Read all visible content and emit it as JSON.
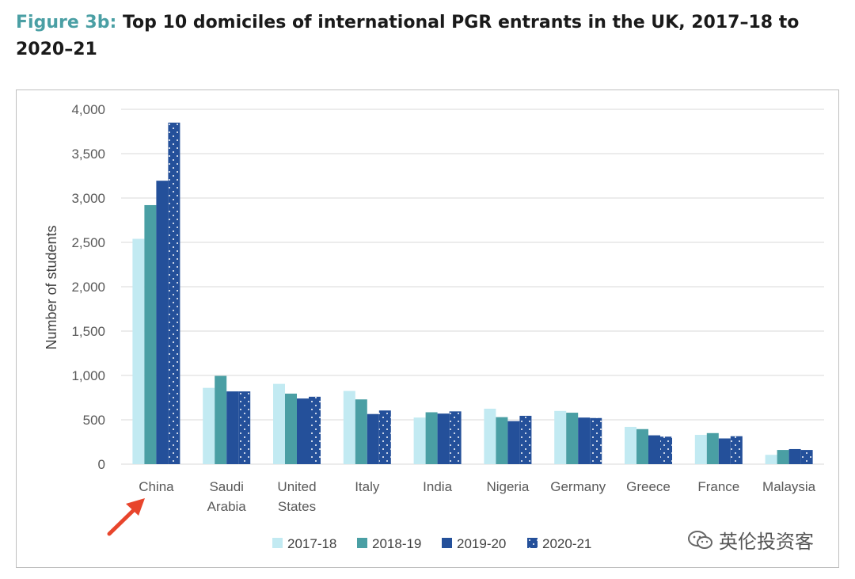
{
  "title": {
    "label": "Figure 3b:",
    "text": "Top 10 domiciles of international PGR entrants in the UK, 2017–18 to 2020–21"
  },
  "watermark": "英伦投资客",
  "colors": {
    "2017-18": "#c2eaf2",
    "2018-19": "#4a9fa4",
    "2019-20": "#24509a",
    "2020-21": "#24509a",
    "arrow": "#e8452c",
    "grid": "#d9d9d9"
  },
  "chart_data": {
    "type": "bar",
    "ylabel": "Number of students",
    "ylim": [
      0,
      4000
    ],
    "yticks": [
      0,
      500,
      1000,
      1500,
      2000,
      2500,
      3000,
      3500,
      4000
    ],
    "ytick_labels": [
      "0",
      "500",
      "1,000",
      "1,500",
      "2,000",
      "2,500",
      "3,000",
      "3,500",
      "4,000"
    ],
    "categories": [
      [
        "China"
      ],
      [
        "Saudi",
        "Arabia"
      ],
      [
        "United",
        "States"
      ],
      [
        "Italy"
      ],
      [
        "India"
      ],
      [
        "Nigeria"
      ],
      [
        "Germany"
      ],
      [
        "Greece"
      ],
      [
        "France"
      ],
      [
        "Malaysia"
      ]
    ],
    "series": [
      {
        "name": "2017-18",
        "values": [
          2540,
          860,
          905,
          825,
          525,
          625,
          600,
          420,
          330,
          105
        ]
      },
      {
        "name": "2018-19",
        "values": [
          2920,
          995,
          795,
          730,
          585,
          530,
          580,
          395,
          350,
          160
        ]
      },
      {
        "name": "2019-20",
        "values": [
          3195,
          820,
          740,
          565,
          570,
          485,
          525,
          325,
          290,
          170
        ]
      },
      {
        "name": "2020-21",
        "values": [
          3850,
          820,
          760,
          605,
          595,
          545,
          520,
          310,
          315,
          160
        ]
      }
    ],
    "legend_position": "bottom",
    "grid": true
  }
}
